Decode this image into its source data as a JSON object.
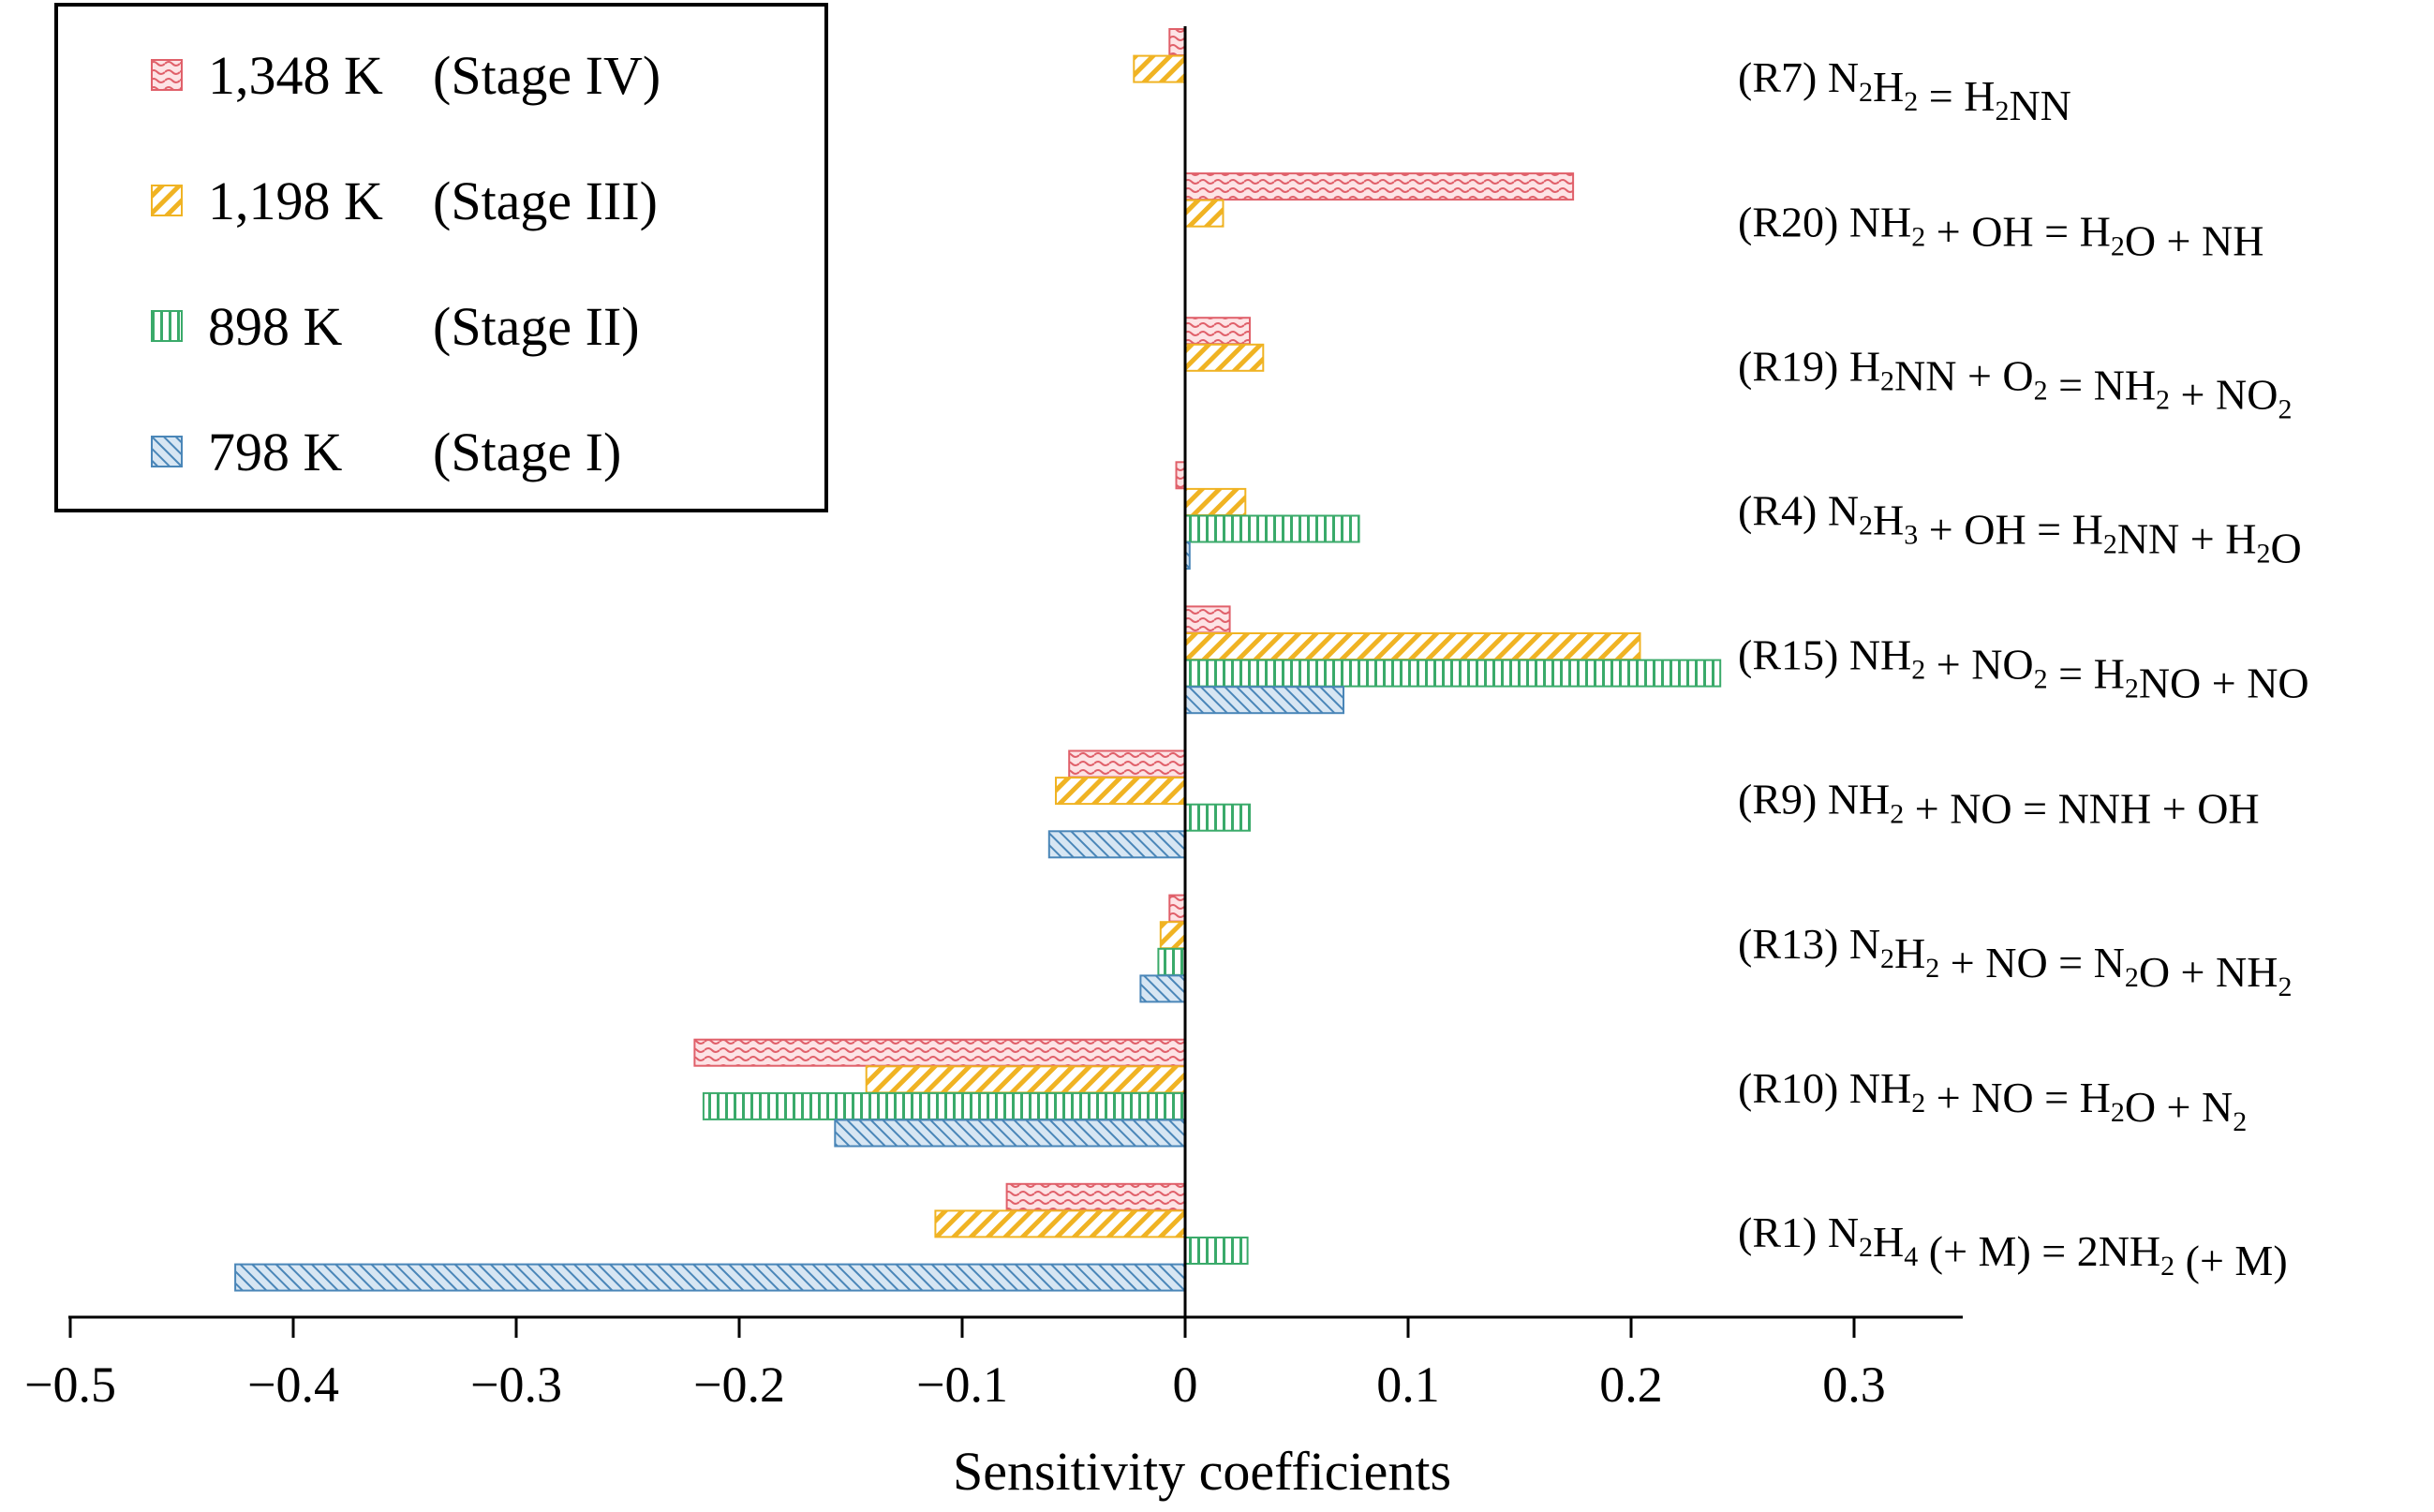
{
  "chart_data": {
    "type": "bar",
    "orientation": "horizontal",
    "title": "",
    "xlabel": "Sensitivity coefficients",
    "ylabel": "",
    "xlim": [
      -0.5,
      0.35
    ],
    "x_ticks": [
      -0.5,
      -0.4,
      -0.3,
      -0.2,
      -0.1,
      0,
      0.1,
      0.2,
      0.3
    ],
    "x_tick_labels": [
      "−0.5",
      "−0.4",
      "−0.3",
      "−0.2",
      "−0.1",
      "0",
      "0.1",
      "0.2",
      "0.3"
    ],
    "grid": false,
    "legend_position": "top-left",
    "categories": [
      {
        "id": "R7",
        "parts": [
          [
            "(R7) N",
            ""
          ],
          [
            "2",
            "sub"
          ],
          [
            "H",
            ""
          ],
          [
            "2",
            "sub"
          ],
          [
            " = H",
            ""
          ],
          [
            "2",
            "sub"
          ],
          [
            "NN",
            ""
          ]
        ]
      },
      {
        "id": "R20",
        "parts": [
          [
            "(R20) NH",
            ""
          ],
          [
            "2",
            "sub"
          ],
          [
            " + OH = H",
            ""
          ],
          [
            "2",
            "sub"
          ],
          [
            "O + NH",
            ""
          ]
        ]
      },
      {
        "id": "R19",
        "parts": [
          [
            "(R19) H",
            ""
          ],
          [
            "2",
            "sub"
          ],
          [
            "NN + O",
            ""
          ],
          [
            "2",
            "sub"
          ],
          [
            " = NH",
            ""
          ],
          [
            "2",
            "sub"
          ],
          [
            " + NO",
            ""
          ],
          [
            "2",
            "sub"
          ]
        ]
      },
      {
        "id": "R4",
        "parts": [
          [
            "(R4) N",
            ""
          ],
          [
            "2",
            "sub"
          ],
          [
            "H",
            ""
          ],
          [
            "3",
            "sub"
          ],
          [
            " + OH = H",
            ""
          ],
          [
            "2",
            "sub"
          ],
          [
            "NN + H",
            ""
          ],
          [
            "2",
            "sub"
          ],
          [
            "O",
            ""
          ]
        ]
      },
      {
        "id": "R15",
        "parts": [
          [
            "(R15) NH",
            ""
          ],
          [
            "2",
            "sub"
          ],
          [
            " + NO",
            ""
          ],
          [
            "2",
            "sub"
          ],
          [
            " = H",
            ""
          ],
          [
            "2",
            "sub"
          ],
          [
            "NO + NO",
            ""
          ]
        ]
      },
      {
        "id": "R9",
        "parts": [
          [
            "(R9) NH",
            ""
          ],
          [
            "2",
            "sub"
          ],
          [
            " + NO = NNH + OH",
            ""
          ]
        ]
      },
      {
        "id": "R13",
        "parts": [
          [
            "(R13) N",
            ""
          ],
          [
            "2",
            "sub"
          ],
          [
            "H",
            ""
          ],
          [
            "2",
            "sub"
          ],
          [
            " + NO = N",
            ""
          ],
          [
            "2",
            "sub"
          ],
          [
            "O + NH",
            ""
          ],
          [
            "2",
            "sub"
          ]
        ]
      },
      {
        "id": "R10",
        "parts": [
          [
            "(R10) NH",
            ""
          ],
          [
            "2",
            "sub"
          ],
          [
            " + NO = H",
            ""
          ],
          [
            "2",
            "sub"
          ],
          [
            "O + N",
            ""
          ],
          [
            "2",
            "sub"
          ]
        ]
      },
      {
        "id": "R1",
        "parts": [
          [
            "(R1) N",
            ""
          ],
          [
            "2",
            "sub"
          ],
          [
            "H",
            ""
          ],
          [
            "4",
            "sub"
          ],
          [
            " (+ M) = 2NH",
            ""
          ],
          [
            "2",
            "sub"
          ],
          [
            " (+ M)",
            ""
          ]
        ]
      }
    ],
    "series": [
      {
        "name": "1,348 K (Stage IV)",
        "temp": "1,348 K",
        "stage": "(Stage IV)",
        "color": "#e0606a",
        "fill": "#fde3e5",
        "pattern": "wave",
        "values": [
          -0.007,
          0.174,
          0.029,
          -0.004,
          0.02,
          -0.052,
          -0.007,
          -0.22,
          -0.08
        ]
      },
      {
        "name": "1,198 K (Stage III)",
        "temp": "1,198 K",
        "stage": "(Stage III)",
        "color": "#f0b323",
        "fill": "#ffffff",
        "pattern": "diag-right",
        "values": [
          -0.023,
          0.017,
          0.035,
          0.027,
          0.204,
          -0.058,
          -0.011,
          -0.143,
          -0.112
        ]
      },
      {
        "name": "898 K (Stage II)",
        "temp": "898 K",
        "stage": "(Stage II)",
        "color": "#3aaa6a",
        "fill": "#ffffff",
        "pattern": "vertical",
        "values": [
          null,
          null,
          null,
          0.078,
          0.24,
          0.029,
          -0.012,
          -0.216,
          0.028
        ]
      },
      {
        "name": "798 K (Stage I)",
        "temp": "798 K",
        "stage": "(Stage I)",
        "color": "#4a86b8",
        "fill": "#d7e6f3",
        "pattern": "diag-left",
        "values": [
          null,
          null,
          null,
          0.002,
          0.071,
          -0.061,
          -0.02,
          -0.157,
          -0.426
        ]
      }
    ]
  }
}
